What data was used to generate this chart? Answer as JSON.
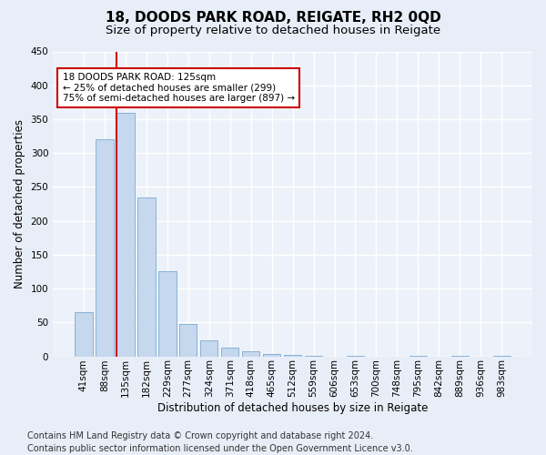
{
  "title": "18, DOODS PARK ROAD, REIGATE, RH2 0QD",
  "subtitle": "Size of property relative to detached houses in Reigate",
  "xlabel": "Distribution of detached houses by size in Reigate",
  "ylabel": "Number of detached properties",
  "categories": [
    "41sqm",
    "88sqm",
    "135sqm",
    "182sqm",
    "229sqm",
    "277sqm",
    "324sqm",
    "371sqm",
    "418sqm",
    "465sqm",
    "512sqm",
    "559sqm",
    "606sqm",
    "653sqm",
    "700sqm",
    "748sqm",
    "795sqm",
    "842sqm",
    "889sqm",
    "936sqm",
    "983sqm"
  ],
  "values": [
    65,
    320,
    360,
    235,
    126,
    48,
    23,
    13,
    8,
    4,
    2,
    1,
    0,
    1,
    0,
    0,
    1,
    0,
    1,
    0,
    1
  ],
  "bar_color": "#c5d8ee",
  "bar_edge_color": "#7aaad0",
  "vline_x_idx": 2,
  "vline_color": "#cc0000",
  "annotation_line1": "18 DOODS PARK ROAD: 125sqm",
  "annotation_line2": "← 25% of detached houses are smaller (299)",
  "annotation_line3": "75% of semi-detached houses are larger (897) →",
  "annotation_box_color": "#ffffff",
  "annotation_box_edge": "#cc0000",
  "ylim": [
    0,
    450
  ],
  "yticks": [
    0,
    50,
    100,
    150,
    200,
    250,
    300,
    350,
    400,
    450
  ],
  "footer": "Contains HM Land Registry data © Crown copyright and database right 2024.\nContains public sector information licensed under the Open Government Licence v3.0.",
  "bg_color": "#e8eef8",
  "plot_bg_color": "#edf2fa",
  "grid_color": "#ffffff",
  "title_fontsize": 11,
  "subtitle_fontsize": 9.5,
  "ylabel_fontsize": 8.5,
  "xlabel_fontsize": 8.5,
  "tick_fontsize": 7.5,
  "annot_fontsize": 7.5,
  "footer_fontsize": 7
}
